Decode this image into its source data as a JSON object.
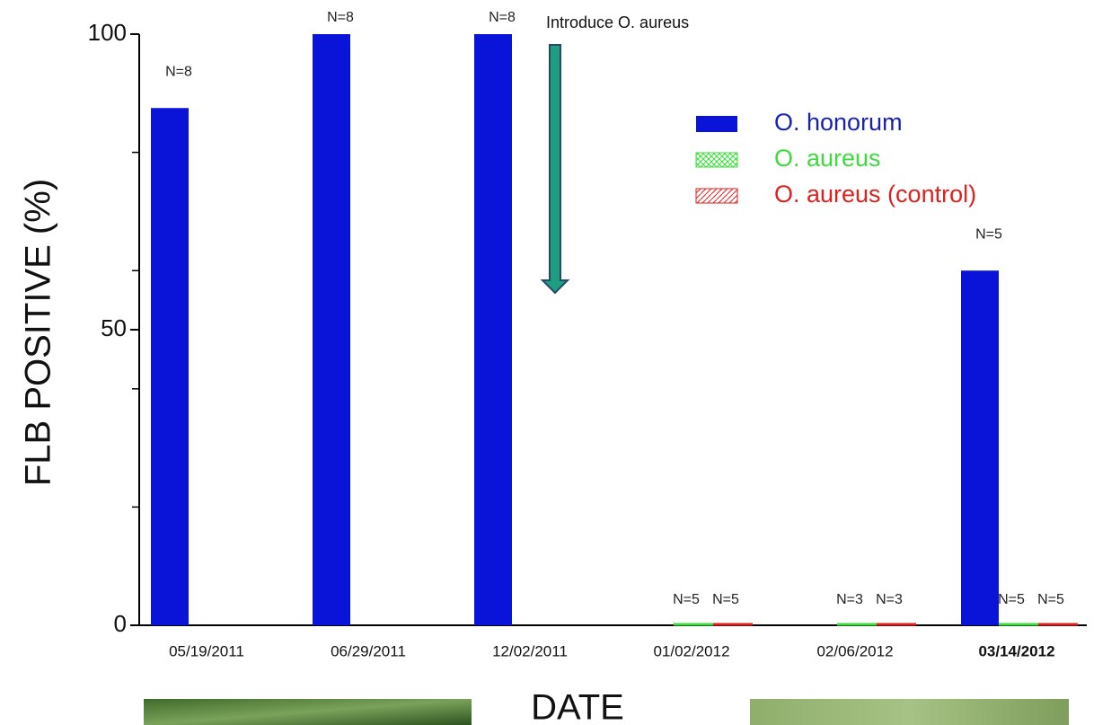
{
  "chart_data": {
    "type": "bar",
    "categories": [
      "05/19/2011",
      "06/29/2011",
      "12/02/2011",
      "01/02/2012",
      "02/06/2012",
      "03/14/2012"
    ],
    "series": [
      {
        "name": "O. honorum",
        "color": "#0a14d8",
        "values": [
          87.5,
          100,
          100,
          null,
          null,
          60
        ],
        "bar_labels": [
          "N=8",
          "N=8",
          "N=8",
          null,
          null,
          "N=5"
        ]
      },
      {
        "name": "O. aureus",
        "color": "#3cdc3c",
        "values": [
          null,
          null,
          null,
          0,
          0,
          0
        ],
        "bar_labels": [
          null,
          null,
          null,
          "N=5",
          "N=3",
          "N=5"
        ]
      },
      {
        "name": "O. aureus (control)",
        "color": "#e0201e",
        "values": [
          null,
          null,
          null,
          0,
          0,
          0
        ],
        "bar_labels": [
          null,
          null,
          null,
          "N=5",
          "N=3",
          "N=5"
        ]
      }
    ],
    "ylim": [
      0,
      100
    ],
    "yticks": [
      0,
      50,
      100
    ],
    "yticks_minor": [
      20,
      40,
      60,
      80
    ],
    "ylabel": "FLB POSITIVE (%)",
    "xlabel": "DATE",
    "annotation": "Introduce O. aureus",
    "legend": "upper right"
  }
}
